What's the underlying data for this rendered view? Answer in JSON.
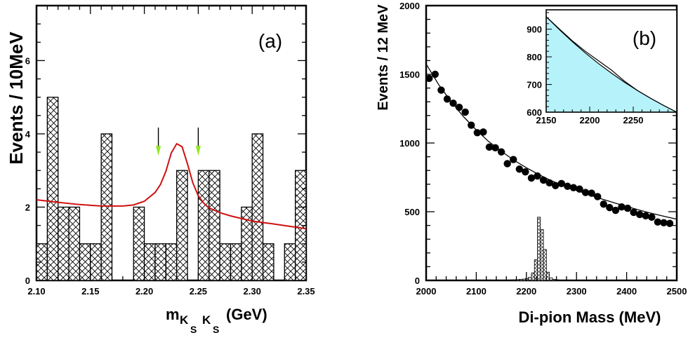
{
  "colors": {
    "fit_line": "#d01010",
    "arrow_head": "#8fe61c",
    "inset_fill": "#b6f2fa",
    "hist_stroke": "#000000"
  },
  "chart_data": [
    {
      "type": "bar",
      "panel_label": "(a)",
      "title": "",
      "ylabel": "Events / 10MeV",
      "xlabel_main": "m",
      "xlabel_sub1": "K",
      "xlabel_subsub1": "S",
      "xlabel_sub2": "K",
      "xlabel_subsub2": "S",
      "xlabel_unit": "(GeV)",
      "xlim": [
        2.1,
        2.35
      ],
      "ylim": [
        0,
        7.5
      ],
      "xticks": [
        2.1,
        2.15,
        2.2,
        2.25,
        2.3,
        2.35
      ],
      "xtick_labels": [
        "2.10",
        "2.15",
        "2.20",
        "2.25",
        "2.30",
        "2.35"
      ],
      "yticks": [
        0,
        2,
        4,
        6
      ],
      "ytick_labels": [
        "0",
        "2",
        "4",
        "6"
      ],
      "bin_width": 0.01,
      "bins": [
        {
          "x0": 2.1,
          "count": 1
        },
        {
          "x0": 2.11,
          "count": 5
        },
        {
          "x0": 2.12,
          "count": 2
        },
        {
          "x0": 2.13,
          "count": 2
        },
        {
          "x0": 2.14,
          "count": 1
        },
        {
          "x0": 2.15,
          "count": 1
        },
        {
          "x0": 2.16,
          "count": 4
        },
        {
          "x0": 2.17,
          "count": 0
        },
        {
          "x0": 2.18,
          "count": 0
        },
        {
          "x0": 2.19,
          "count": 2
        },
        {
          "x0": 2.2,
          "count": 1
        },
        {
          "x0": 2.21,
          "count": 1
        },
        {
          "x0": 2.22,
          "count": 1
        },
        {
          "x0": 2.23,
          "count": 3
        },
        {
          "x0": 2.24,
          "count": 0
        },
        {
          "x0": 2.25,
          "count": 3
        },
        {
          "x0": 2.26,
          "count": 3
        },
        {
          "x0": 2.27,
          "count": 1
        },
        {
          "x0": 2.28,
          "count": 1
        },
        {
          "x0": 2.29,
          "count": 2
        },
        {
          "x0": 2.3,
          "count": 4
        },
        {
          "x0": 2.31,
          "count": 1
        },
        {
          "x0": 2.32,
          "count": 0
        },
        {
          "x0": 2.33,
          "count": 1
        },
        {
          "x0": 2.34,
          "count": 3
        }
      ],
      "fit_curve": {
        "x": [
          2.1,
          2.12,
          2.14,
          2.16,
          2.18,
          2.19,
          2.2,
          2.21,
          2.215,
          2.22,
          2.225,
          2.23,
          2.235,
          2.24,
          2.245,
          2.25,
          2.255,
          2.26,
          2.27,
          2.28,
          2.3,
          2.32,
          2.35
        ],
        "y": [
          2.2,
          2.13,
          2.07,
          2.03,
          2.03,
          2.06,
          2.16,
          2.4,
          2.62,
          2.98,
          3.48,
          3.73,
          3.65,
          3.18,
          2.66,
          2.31,
          2.11,
          1.98,
          1.85,
          1.76,
          1.62,
          1.54,
          1.41
        ]
      },
      "arrows_at_x": [
        2.213,
        2.25
      ]
    },
    {
      "type": "scatter",
      "panel_label": "(b)",
      "title": "",
      "ylabel": "Events / 12 MeV",
      "xlabel": "Di-pion  Mass (MeV)",
      "xlim": [
        2000,
        2500
      ],
      "ylim": [
        0,
        2000
      ],
      "xticks": [
        2000,
        2100,
        2200,
        2300,
        2400,
        2500
      ],
      "xtick_labels": [
        "2000",
        "2100",
        "2200",
        "2300",
        "2400",
        "2500"
      ],
      "yticks": [
        0,
        500,
        1000,
        1500,
        2000
      ],
      "ytick_labels": [
        "0",
        "500",
        "1000",
        "1500",
        "2000"
      ],
      "points": {
        "x": [
          2006,
          2018,
          2030,
          2042,
          2054,
          2066,
          2078,
          2090,
          2102,
          2114,
          2126,
          2138,
          2150,
          2162,
          2174,
          2186,
          2198,
          2210,
          2222,
          2234,
          2246,
          2258,
          2270,
          2282,
          2294,
          2306,
          2318,
          2330,
          2342,
          2354,
          2366,
          2378,
          2390,
          2402,
          2414,
          2426,
          2438,
          2450,
          2462,
          2474,
          2486
        ],
        "y": [
          1470,
          1500,
          1385,
          1320,
          1290,
          1260,
          1225,
          1130,
          1075,
          1080,
          970,
          965,
          935,
          850,
          880,
          810,
          790,
          745,
          760,
          730,
          710,
          690,
          705,
          685,
          675,
          665,
          640,
          635,
          610,
          555,
          530,
          510,
          535,
          525,
          495,
          480,
          470,
          460,
          425,
          420,
          415
        ]
      },
      "fit_curve": {
        "x": [
          2000,
          2025,
          2050,
          2075,
          2100,
          2125,
          2150,
          2175,
          2200,
          2225,
          2250,
          2275,
          2300,
          2325,
          2350,
          2375,
          2400,
          2425,
          2450,
          2475,
          2500
        ],
        "y": [
          1575,
          1425,
          1300,
          1190,
          1095,
          1010,
          940,
          875,
          820,
          770,
          725,
          688,
          655,
          623,
          593,
          565,
          538,
          512,
          488,
          466,
          446
        ]
      },
      "signal_histogram": {
        "bin_width": 6,
        "bins": [
          {
            "x0": 2150,
            "count": 2
          },
          {
            "x0": 2156,
            "count": 3
          },
          {
            "x0": 2162,
            "count": 3
          },
          {
            "x0": 2168,
            "count": 4
          },
          {
            "x0": 2174,
            "count": 5
          },
          {
            "x0": 2180,
            "count": 6
          },
          {
            "x0": 2186,
            "count": 8
          },
          {
            "x0": 2192,
            "count": 10
          },
          {
            "x0": 2198,
            "count": 14
          },
          {
            "x0": 2204,
            "count": 22
          },
          {
            "x0": 2210,
            "count": 55
          },
          {
            "x0": 2216,
            "count": 150
          },
          {
            "x0": 2222,
            "count": 460
          },
          {
            "x0": 2228,
            "count": 370
          },
          {
            "x0": 2234,
            "count": 225
          },
          {
            "x0": 2240,
            "count": 60
          },
          {
            "x0": 2246,
            "count": 18
          },
          {
            "x0": 2252,
            "count": 8
          },
          {
            "x0": 2258,
            "count": 5
          },
          {
            "x0": 2264,
            "count": 3
          },
          {
            "x0": 2270,
            "count": 2
          }
        ]
      },
      "inset": {
        "type": "area",
        "xlim": [
          2150,
          2300
        ],
        "ylim": [
          600,
          970
        ],
        "xticks": [
          2150,
          2200,
          2250
        ],
        "xtick_labels": [
          "2150",
          "2200",
          "2250"
        ],
        "yticks": [
          600,
          700,
          800,
          900
        ],
        "ytick_labels": [
          "600",
          "700",
          "800",
          "900"
        ],
        "area_curve": {
          "x": [
            2150,
            2165,
            2180,
            2195,
            2210,
            2225,
            2240,
            2255,
            2270,
            2285,
            2300
          ],
          "y": [
            945,
            899,
            855,
            814,
            776,
            741,
            708,
            678,
            650,
            624,
            600
          ]
        },
        "line_curve": {
          "x": [
            2150,
            2165,
            2180,
            2195,
            2210,
            2225,
            2240,
            2255,
            2270,
            2285,
            2300
          ],
          "y": [
            945,
            901,
            858,
            820,
            786,
            752,
            712,
            678,
            650,
            624,
            600
          ]
        }
      }
    }
  ]
}
